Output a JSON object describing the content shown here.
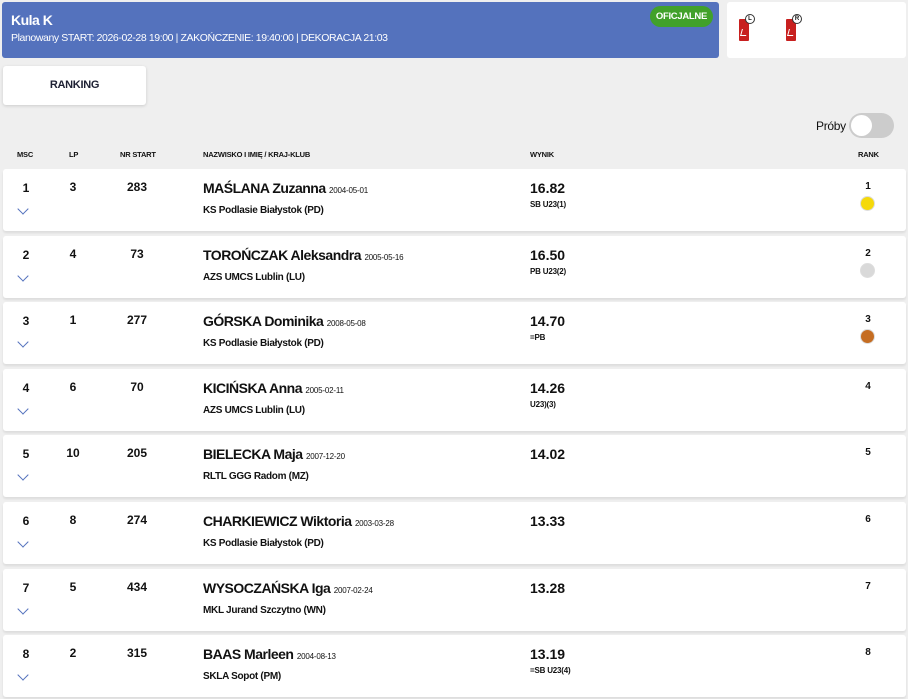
{
  "header": {
    "title": "Kula K",
    "schedule": "Planowany START: 2026-02-28 19:00 | ZAKOŃCZENIE: 19:40:00 | DEKORACJA 21:03",
    "status": "OFICJALNE"
  },
  "pdfs": [
    {
      "icon": "pdf-icon",
      "letter": "L"
    },
    {
      "icon": "pdf-icon",
      "letter": "R"
    }
  ],
  "tabs": {
    "ranking": "RANKING"
  },
  "proby": {
    "label": "Próby",
    "on": false
  },
  "columns": {
    "msc": "MSC",
    "lp": "LP",
    "nr": "NR START",
    "name": "NAZWISKO I IMIĘ / KRAJ-KLUB",
    "result": "WYNIK",
    "rank": "RANK"
  },
  "medal_colors": {
    "gold": "#f5d90a",
    "silver": "#d9d9d9",
    "bronze": "#c56d22"
  },
  "rows": [
    {
      "msc": "1",
      "lp": "3",
      "nr": "283",
      "name": "MAŚLANA Zuzanna",
      "dob": "2004-05-01",
      "club": "KS Podlasie Białystok (PD)",
      "result": "16.82",
      "note": "SB U23(1)",
      "rank": "1",
      "medal": "gold"
    },
    {
      "msc": "2",
      "lp": "4",
      "nr": "73",
      "name": "TOROŃCZAK Aleksandra",
      "dob": "2005-05-16",
      "club": "AZS UMCS Lublin (LU)",
      "result": "16.50",
      "note": "PB U23(2)",
      "rank": "2",
      "medal": "silver"
    },
    {
      "msc": "3",
      "lp": "1",
      "nr": "277",
      "name": "GÓRSKA Dominika",
      "dob": "2008-05-08",
      "club": "KS Podlasie Białystok (PD)",
      "result": "14.70",
      "note": "=PB",
      "rank": "3",
      "medal": "bronze"
    },
    {
      "msc": "4",
      "lp": "6",
      "nr": "70",
      "name": "KICIŃSKA Anna",
      "dob": "2005-02-11",
      "club": "AZS UMCS Lublin (LU)",
      "result": "14.26",
      "note": "U23)(3)",
      "rank": "4"
    },
    {
      "msc": "5",
      "lp": "10",
      "nr": "205",
      "name": "BIELECKA Maja",
      "dob": "2007-12-20",
      "club": "RLTL GGG Radom (MZ)",
      "result": "14.02",
      "note": "",
      "rank": "5"
    },
    {
      "msc": "6",
      "lp": "8",
      "nr": "274",
      "name": "CHARKIEWICZ Wiktoria",
      "dob": "2003-03-28",
      "club": "KS Podlasie Białystok (PD)",
      "result": "13.33",
      "note": "",
      "rank": "6"
    },
    {
      "msc": "7",
      "lp": "5",
      "nr": "434",
      "name": "WYSOCZAŃSKA Iga",
      "dob": "2007-02-24",
      "club": "MKL Jurand Szczytno (WN)",
      "result": "13.28",
      "note": "",
      "rank": "7"
    },
    {
      "msc": "8",
      "lp": "2",
      "nr": "315",
      "name": "BAAS Marleen",
      "dob": "2004-08-13",
      "club": "SKLA Sopot (PM)",
      "result": "13.19",
      "note": "=SB U23(4)",
      "rank": "8"
    }
  ]
}
